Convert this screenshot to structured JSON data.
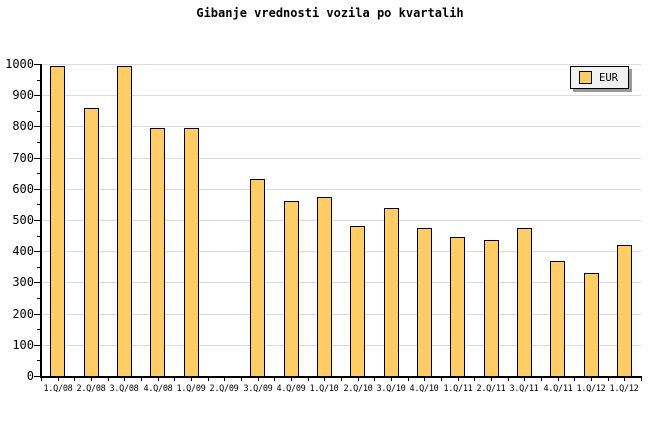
{
  "title": "Gibanje vrednosti vozila po kvartalih",
  "legend": {
    "label": "EUR",
    "swatch_color": "#FFCC66"
  },
  "colors": {
    "bar_fill": "#FFCC66",
    "bar_border": "#000000",
    "grid": "#DCDCDC",
    "axis": "#000000",
    "legend_bg": "#F2F2F2",
    "legend_shadow": "#999999",
    "background": "#FFFFFF"
  },
  "chart_data": {
    "type": "bar",
    "title": "Gibanje vrednosti vozila po kvartalih",
    "categories": [
      "1.Q/08",
      "2.Q/08",
      "3.Q/08",
      "4.Q/08",
      "1.Q/09",
      "2.Q/09",
      "3.Q/09",
      "4.Q/09",
      "1.Q/10",
      "2.Q/10",
      "3.Q/10",
      "4.Q/10",
      "1.Q/11",
      "2.Q/11",
      "3.Q/11",
      "4.Q/11",
      "1.Q/12",
      "1.Q/12"
    ],
    "series": [
      {
        "name": "EUR",
        "values": [
          995,
          860,
          995,
          795,
          795,
          0,
          630,
          560,
          575,
          480,
          540,
          475,
          445,
          435,
          475,
          370,
          330,
          420
        ]
      }
    ],
    "xlabel": "",
    "ylabel": "",
    "ylim": [
      0,
      1000
    ],
    "ytick_interval": 100,
    "yminor_tick_interval": 50,
    "ytick_labels": [
      "0",
      "100",
      "200",
      "300",
      "400",
      "500",
      "600",
      "700",
      "800",
      "900",
      "1000"
    ],
    "grid": true,
    "legend_position": "top-right",
    "missing_value_categories": [
      "2.Q/09"
    ]
  }
}
